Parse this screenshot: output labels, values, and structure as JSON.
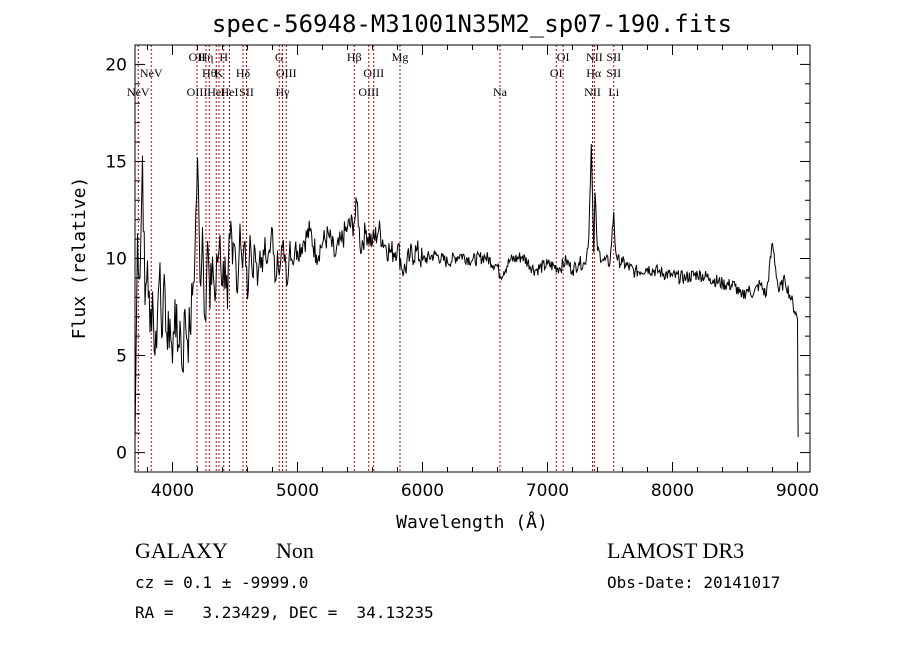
{
  "chart_data": {
    "type": "line",
    "title": "spec-56948-M31001N35M2_sp07-190.fits",
    "xlabel": "Wavelength (Å)",
    "ylabel": "Flux (relative)",
    "xlim": [
      3700,
      9100
    ],
    "ylim": [
      -1,
      21
    ],
    "xticks": [
      4000,
      5000,
      6000,
      7000,
      8000,
      9000
    ],
    "yticks": [
      0,
      5,
      10,
      15,
      20
    ],
    "grid": false,
    "series": [
      {
        "name": "flux",
        "x": [
          3700,
          3720,
          3740,
          3760,
          3780,
          3800,
          3820,
          3840,
          3860,
          3880,
          3900,
          3920,
          3940,
          3960,
          3980,
          4000,
          4020,
          4040,
          4060,
          4080,
          4100,
          4120,
          4140,
          4160,
          4180,
          4200,
          4220,
          4240,
          4260,
          4280,
          4300,
          4320,
          4340,
          4360,
          4380,
          4400,
          4420,
          4440,
          4460,
          4480,
          4500,
          4520,
          4540,
          4560,
          4580,
          4600,
          4620,
          4640,
          4660,
          4680,
          4700,
          4720,
          4740,
          4760,
          4780,
          4800,
          4820,
          4840,
          4860,
          4880,
          4900,
          4920,
          4940,
          4960,
          4980,
          5000,
          5050,
          5100,
          5150,
          5200,
          5250,
          5300,
          5350,
          5400,
          5450,
          5480,
          5500,
          5550,
          5600,
          5650,
          5700,
          5750,
          5800,
          5850,
          5900,
          5950,
          6000,
          6100,
          6200,
          6300,
          6400,
          6500,
          6600,
          6620,
          6700,
          6800,
          6900,
          7000,
          7100,
          7150,
          7200,
          7250,
          7300,
          7330,
          7350,
          7370,
          7380,
          7400,
          7450,
          7500,
          7530,
          7540,
          7560,
          7600,
          7700,
          7800,
          7900,
          8000,
          8100,
          8200,
          8300,
          8400,
          8500,
          8550,
          8600,
          8650,
          8700,
          8750,
          8800,
          8850,
          8900,
          8950,
          9000,
          9005
        ],
        "values": [
          0.5,
          11.3,
          9.0,
          15.3,
          7.6,
          9.9,
          6.2,
          8.3,
          5.0,
          7.2,
          9.8,
          6.1,
          8.5,
          5.3,
          6.9,
          4.6,
          7.9,
          5.2,
          6.8,
          4.2,
          7.4,
          5.8,
          6.3,
          8.1,
          10.4,
          15.2,
          8.8,
          11.6,
          6.9,
          10.9,
          7.4,
          10.1,
          7.8,
          9.8,
          11.2,
          8.6,
          10.1,
          7.4,
          11.0,
          9.7,
          10.6,
          8.2,
          11.8,
          9.5,
          10.9,
          7.9,
          11.2,
          9.1,
          10.5,
          8.6,
          10.4,
          9.3,
          11.1,
          9.8,
          10.3,
          11.5,
          8.8,
          10.4,
          9.5,
          10.6,
          10.2,
          8.7,
          10.9,
          9.8,
          10.5,
          10.4,
          10.9,
          11.4,
          10.2,
          10.8,
          11.2,
          10.1,
          10.9,
          11.6,
          11.8,
          12.9,
          10.6,
          11.4,
          10.8,
          11.5,
          10.7,
          10.3,
          10.6,
          9.3,
          10.1,
          10.4,
          9.9,
          10.2,
          9.8,
          10.2,
          9.9,
          10.1,
          9.6,
          9.1,
          9.9,
          10.1,
          9.4,
          9.7,
          9.5,
          9.9,
          9.4,
          9.8,
          9.7,
          11.1,
          15.9,
          10.3,
          13.4,
          10.4,
          9.9,
          9.8,
          12.4,
          10.8,
          9.9,
          9.8,
          9.3,
          9.5,
          9.3,
          9.1,
          9.0,
          9.2,
          9.0,
          8.7,
          8.6,
          8.0,
          8.4,
          8.2,
          8.7,
          8.1,
          10.8,
          8.3,
          8.9,
          7.9,
          6.9,
          0.8
        ]
      }
    ],
    "lines": [
      {
        "label": "NeV",
        "wavelength": 3726,
        "row": 2
      },
      {
        "label": "NeV",
        "wavelength": 3830,
        "row": 1
      },
      {
        "label": "OII",
        "wavelength": 4196,
        "row": 0
      },
      {
        "label": "OIII",
        "wavelength": 4196,
        "row": 2
      },
      {
        "label": "Hη",
        "wavelength": 4268,
        "row": 0
      },
      {
        "label": "Hθ",
        "wavelength": 4294,
        "row": 1
      },
      {
        "label": "HeI",
        "wavelength": 4350,
        "row": 2
      },
      {
        "label": "H",
        "wavelength": 4410,
        "row": 0
      },
      {
        "label": "K",
        "wavelength": 4372,
        "row": 1
      },
      {
        "label": "HeI",
        "wavelength": 4456,
        "row": 2
      },
      {
        "label": "Hδ",
        "wavelength": 4564,
        "row": 1
      },
      {
        "label": "SII",
        "wavelength": 4592,
        "row": 2
      },
      {
        "label": "G",
        "wavelength": 4854,
        "row": 0
      },
      {
        "label": "OIII",
        "wavelength": 4910,
        "row": 1
      },
      {
        "label": "Hγ",
        "wavelength": 4880,
        "row": 2
      },
      {
        "label": "Hβ",
        "wavelength": 5454,
        "row": 0
      },
      {
        "label": "OIII",
        "wavelength": 5610,
        "row": 1
      },
      {
        "label": "OIII",
        "wavelength": 5570,
        "row": 2
      },
      {
        "label": "Mg",
        "wavelength": 5820,
        "row": 0
      },
      {
        "label": "Na",
        "wavelength": 6620,
        "row": 2
      },
      {
        "label": "OI",
        "wavelength": 7125,
        "row": 0
      },
      {
        "label": "OI",
        "wavelength": 7070,
        "row": 1
      },
      {
        "label": "NII",
        "wavelength": 7375,
        "row": 0
      },
      {
        "label": "Hα",
        "wavelength": 7370,
        "row": 1
      },
      {
        "label": "NII",
        "wavelength": 7360,
        "row": 2
      },
      {
        "label": "SII",
        "wavelength": 7530,
        "row": 0
      },
      {
        "label": "SII",
        "wavelength": 7530,
        "row": 1
      },
      {
        "label": "Li",
        "wavelength": 7530,
        "row": 2
      }
    ]
  },
  "info": {
    "class": "GALAXY",
    "subclass": "Non",
    "survey": "LAMOST DR3",
    "cz": "cz = 0.1 ± -9999.0",
    "obs_date": "Obs-Date: 20141017",
    "radec": "RA =   3.23429, DEC =  34.13235"
  },
  "colors": {
    "axis": "#000000",
    "spectrum": "#000000",
    "line_marker": "#c00000"
  }
}
